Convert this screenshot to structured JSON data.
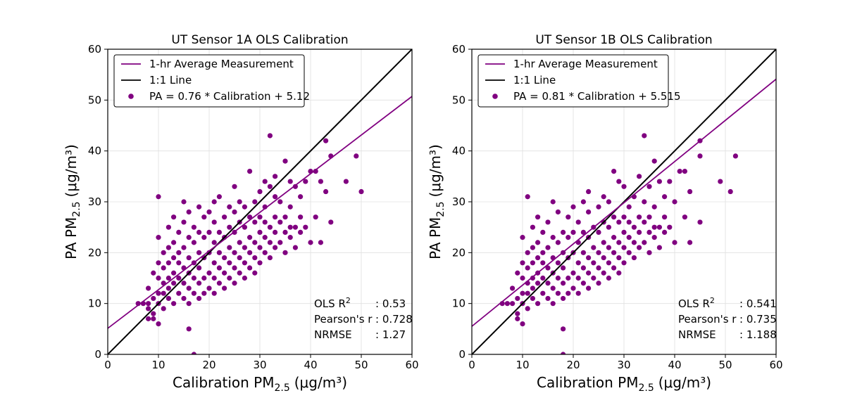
{
  "colors": {
    "scatter": "#800080",
    "fit": "#800080",
    "identity": "#000000",
    "grid": "#e0e0e0"
  },
  "chart_data": [
    {
      "type": "scatter",
      "title": "UT Sensor 1A OLS Calibration",
      "xlabel_main": "Calibration PM",
      "xlabel_sub": "2.5",
      "xlabel_unit": "(μg/m³)",
      "ylabel_main": "PA PM",
      "ylabel_sub": "2.5",
      "ylabel_unit": "(μg/m³)",
      "xlim": [
        0,
        60
      ],
      "ylim": [
        0,
        60
      ],
      "xticks": [
        "0",
        "10",
        "20",
        "30",
        "40",
        "50",
        "60"
      ],
      "yticks": [
        "0",
        "10",
        "20",
        "30",
        "40",
        "50",
        "60"
      ],
      "grid": true,
      "legend_position": "upper-left",
      "legend": [
        "1-hr Average Measurement",
        "1:1 Line",
        "PA = 0.76 * Calibration + 5.12"
      ],
      "fit": {
        "slope": 0.76,
        "intercept": 5.12
      },
      "stats": [
        {
          "label": "OLS R",
          "sup": "2",
          "value": ": 0.53"
        },
        {
          "label": "Pearson's r",
          "sup": "",
          "value": ": 0.728"
        },
        {
          "label": "NRMSE",
          "sup": "",
          "value": ": 1.27"
        }
      ],
      "points": [
        [
          6,
          10
        ],
        [
          7,
          10
        ],
        [
          8,
          10
        ],
        [
          8,
          13
        ],
        [
          8,
          9
        ],
        [
          8,
          7
        ],
        [
          9,
          7
        ],
        [
          9,
          16
        ],
        [
          9,
          11
        ],
        [
          9,
          8
        ],
        [
          10,
          6
        ],
        [
          10,
          10
        ],
        [
          10,
          12
        ],
        [
          10,
          15
        ],
        [
          10,
          18
        ],
        [
          10,
          23
        ],
        [
          10,
          31
        ],
        [
          11,
          9
        ],
        [
          11,
          12
        ],
        [
          11,
          14
        ],
        [
          11,
          17
        ],
        [
          11,
          20
        ],
        [
          12,
          11
        ],
        [
          12,
          13
        ],
        [
          12,
          15
        ],
        [
          12,
          18
        ],
        [
          12,
          21
        ],
        [
          12,
          25
        ],
        [
          13,
          10
        ],
        [
          13,
          14
        ],
        [
          13,
          16
        ],
        [
          13,
          19
        ],
        [
          13,
          22
        ],
        [
          13,
          27
        ],
        [
          14,
          12
        ],
        [
          14,
          15
        ],
        [
          14,
          18
        ],
        [
          14,
          20
        ],
        [
          14,
          24
        ],
        [
          15,
          11
        ],
        [
          15,
          14
        ],
        [
          15,
          17
        ],
        [
          15,
          21
        ],
        [
          15,
          26
        ],
        [
          15,
          30
        ],
        [
          16,
          10
        ],
        [
          16,
          13
        ],
        [
          16,
          16
        ],
        [
          16,
          19
        ],
        [
          16,
          23
        ],
        [
          16,
          28
        ],
        [
          16,
          5
        ],
        [
          17,
          0
        ],
        [
          17,
          12
        ],
        [
          17,
          15
        ],
        [
          17,
          18
        ],
        [
          17,
          22
        ],
        [
          17,
          25
        ],
        [
          18,
          11
        ],
        [
          18,
          14
        ],
        [
          18,
          17
        ],
        [
          18,
          20
        ],
        [
          18,
          24
        ],
        [
          18,
          29
        ],
        [
          19,
          12
        ],
        [
          19,
          15
        ],
        [
          19,
          19
        ],
        [
          19,
          23
        ],
        [
          19,
          27
        ],
        [
          20,
          13
        ],
        [
          20,
          16
        ],
        [
          20,
          20
        ],
        [
          20,
          24
        ],
        [
          20,
          28
        ],
        [
          21,
          12
        ],
        [
          21,
          15
        ],
        [
          21,
          18
        ],
        [
          21,
          22
        ],
        [
          21,
          26
        ],
        [
          21,
          30
        ],
        [
          22,
          14
        ],
        [
          22,
          17
        ],
        [
          22,
          20
        ],
        [
          22,
          24
        ],
        [
          22,
          31
        ],
        [
          23,
          13
        ],
        [
          23,
          16
        ],
        [
          23,
          19
        ],
        [
          23,
          23
        ],
        [
          23,
          27
        ],
        [
          24,
          15
        ],
        [
          24,
          18
        ],
        [
          24,
          21
        ],
        [
          24,
          25
        ],
        [
          24,
          29
        ],
        [
          25,
          14
        ],
        [
          25,
          17
        ],
        [
          25,
          20
        ],
        [
          25,
          24
        ],
        [
          25,
          28
        ],
        [
          25,
          33
        ],
        [
          26,
          16
        ],
        [
          26,
          19
        ],
        [
          26,
          22
        ],
        [
          26,
          26
        ],
        [
          26,
          30
        ],
        [
          27,
          15
        ],
        [
          27,
          18
        ],
        [
          27,
          21
        ],
        [
          27,
          25
        ],
        [
          27,
          29
        ],
        [
          28,
          17
        ],
        [
          28,
          20
        ],
        [
          28,
          23
        ],
        [
          28,
          27
        ],
        [
          28,
          36
        ],
        [
          29,
          16
        ],
        [
          29,
          19
        ],
        [
          29,
          22
        ],
        [
          29,
          26
        ],
        [
          29,
          30
        ],
        [
          30,
          18
        ],
        [
          30,
          21
        ],
        [
          30,
          24
        ],
        [
          30,
          27
        ],
        [
          30,
          32
        ],
        [
          31,
          20
        ],
        [
          31,
          23
        ],
        [
          31,
          26
        ],
        [
          31,
          29
        ],
        [
          31,
          34
        ],
        [
          32,
          19
        ],
        [
          32,
          22
        ],
        [
          32,
          25
        ],
        [
          32,
          33
        ],
        [
          32,
          43
        ],
        [
          33,
          21
        ],
        [
          33,
          24
        ],
        [
          33,
          27
        ],
        [
          33,
          31
        ],
        [
          33,
          35
        ],
        [
          34,
          22
        ],
        [
          34,
          26
        ],
        [
          34,
          30
        ],
        [
          35,
          20
        ],
        [
          35,
          24
        ],
        [
          35,
          27
        ],
        [
          35,
          38
        ],
        [
          36,
          23
        ],
        [
          36,
          25
        ],
        [
          36,
          29
        ],
        [
          36,
          34
        ],
        [
          37,
          21
        ],
        [
          37,
          25
        ],
        [
          37,
          33
        ],
        [
          38,
          24
        ],
        [
          38,
          27
        ],
        [
          38,
          31
        ],
        [
          39,
          25
        ],
        [
          39,
          34
        ],
        [
          40,
          22
        ],
        [
          40,
          36
        ],
        [
          41,
          27
        ],
        [
          41,
          36
        ],
        [
          42,
          22
        ],
        [
          42,
          34
        ],
        [
          43,
          32
        ],
        [
          43,
          42
        ],
        [
          44,
          26
        ],
        [
          44,
          39
        ],
        [
          47,
          34
        ],
        [
          49,
          39
        ],
        [
          50,
          32
        ]
      ]
    },
    {
      "type": "scatter",
      "title": "UT Sensor 1B OLS Calibration",
      "xlabel_main": "Calibration PM",
      "xlabel_sub": "2.5",
      "xlabel_unit": "(μg/m³)",
      "ylabel_main": "PA PM",
      "ylabel_sub": "2.5",
      "ylabel_unit": "(μg/m³)",
      "xlim": [
        0,
        60
      ],
      "ylim": [
        0,
        60
      ],
      "xticks": [
        "0",
        "10",
        "20",
        "30",
        "40",
        "50",
        "60"
      ],
      "yticks": [
        "0",
        "10",
        "20",
        "30",
        "40",
        "50",
        "60"
      ],
      "grid": true,
      "legend_position": "upper-left",
      "legend": [
        "1-hr Average Measurement",
        "1:1 Line",
        "PA = 0.81 * Calibration + 5.515"
      ],
      "fit": {
        "slope": 0.81,
        "intercept": 5.515
      },
      "stats": [
        {
          "label": "OLS R",
          "sup": "2",
          "value": ": 0.541"
        },
        {
          "label": "Pearson's r",
          "sup": "",
          "value": ": 0.735"
        },
        {
          "label": "NRMSE",
          "sup": "",
          "value": ": 1.188"
        }
      ],
      "points": [
        [
          6,
          10
        ],
        [
          7,
          10
        ],
        [
          8,
          10
        ],
        [
          8,
          13
        ],
        [
          9,
          8
        ],
        [
          9,
          7
        ],
        [
          9,
          16
        ],
        [
          9,
          11
        ],
        [
          10,
          6
        ],
        [
          10,
          10
        ],
        [
          10,
          12
        ],
        [
          10,
          15
        ],
        [
          10,
          18
        ],
        [
          10,
          23
        ],
        [
          11,
          31
        ],
        [
          11,
          9
        ],
        [
          11,
          12
        ],
        [
          11,
          14
        ],
        [
          11,
          17
        ],
        [
          11,
          20
        ],
        [
          12,
          11
        ],
        [
          12,
          13
        ],
        [
          12,
          15
        ],
        [
          12,
          18
        ],
        [
          12,
          21
        ],
        [
          12,
          25
        ],
        [
          13,
          10
        ],
        [
          13,
          14
        ],
        [
          13,
          16
        ],
        [
          13,
          19
        ],
        [
          13,
          22
        ],
        [
          13,
          27
        ],
        [
          14,
          12
        ],
        [
          14,
          15
        ],
        [
          14,
          18
        ],
        [
          14,
          20
        ],
        [
          14,
          24
        ],
        [
          15,
          11
        ],
        [
          15,
          14
        ],
        [
          15,
          17
        ],
        [
          15,
          21
        ],
        [
          15,
          26
        ],
        [
          16,
          10
        ],
        [
          16,
          13
        ],
        [
          16,
          16
        ],
        [
          16,
          19
        ],
        [
          16,
          23
        ],
        [
          16,
          30
        ],
        [
          17,
          12
        ],
        [
          17,
          15
        ],
        [
          17,
          18
        ],
        [
          17,
          22
        ],
        [
          17,
          28
        ],
        [
          18,
          0
        ],
        [
          18,
          5
        ],
        [
          18,
          11
        ],
        [
          18,
          14
        ],
        [
          18,
          17
        ],
        [
          18,
          20
        ],
        [
          18,
          24
        ],
        [
          19,
          12
        ],
        [
          19,
          15
        ],
        [
          19,
          19
        ],
        [
          19,
          23
        ],
        [
          19,
          27
        ],
        [
          20,
          13
        ],
        [
          20,
          16
        ],
        [
          20,
          20
        ],
        [
          20,
          24
        ],
        [
          20,
          29
        ],
        [
          21,
          12
        ],
        [
          21,
          15
        ],
        [
          21,
          18
        ],
        [
          21,
          22
        ],
        [
          21,
          26
        ],
        [
          22,
          14
        ],
        [
          22,
          17
        ],
        [
          22,
          20
        ],
        [
          22,
          24
        ],
        [
          22,
          30
        ],
        [
          23,
          13
        ],
        [
          23,
          16
        ],
        [
          23,
          19
        ],
        [
          23,
          23
        ],
        [
          23,
          28
        ],
        [
          23,
          32
        ],
        [
          24,
          15
        ],
        [
          24,
          18
        ],
        [
          24,
          21
        ],
        [
          24,
          25
        ],
        [
          25,
          14
        ],
        [
          25,
          17
        ],
        [
          25,
          20
        ],
        [
          25,
          24
        ],
        [
          25,
          29
        ],
        [
          26,
          16
        ],
        [
          26,
          19
        ],
        [
          26,
          22
        ],
        [
          26,
          26
        ],
        [
          26,
          31
        ],
        [
          27,
          15
        ],
        [
          27,
          18
        ],
        [
          27,
          21
        ],
        [
          27,
          25
        ],
        [
          27,
          30
        ],
        [
          28,
          17
        ],
        [
          28,
          20
        ],
        [
          28,
          23
        ],
        [
          28,
          27
        ],
        [
          28,
          36
        ],
        [
          29,
          16
        ],
        [
          29,
          19
        ],
        [
          29,
          22
        ],
        [
          29,
          26
        ],
        [
          29,
          34
        ],
        [
          30,
          18
        ],
        [
          30,
          21
        ],
        [
          30,
          24
        ],
        [
          30,
          27
        ],
        [
          30,
          33
        ],
        [
          31,
          20
        ],
        [
          31,
          23
        ],
        [
          31,
          26
        ],
        [
          31,
          29
        ],
        [
          32,
          19
        ],
        [
          32,
          22
        ],
        [
          32,
          25
        ],
        [
          32,
          31
        ],
        [
          33,
          21
        ],
        [
          33,
          24
        ],
        [
          33,
          27
        ],
        [
          33,
          35
        ],
        [
          34,
          22
        ],
        [
          34,
          26
        ],
        [
          34,
          30
        ],
        [
          34,
          43
        ],
        [
          35,
          20
        ],
        [
          35,
          24
        ],
        [
          35,
          27
        ],
        [
          35,
          33
        ],
        [
          36,
          23
        ],
        [
          36,
          25
        ],
        [
          36,
          29
        ],
        [
          36,
          38
        ],
        [
          37,
          21
        ],
        [
          37,
          25
        ],
        [
          37,
          34
        ],
        [
          38,
          24
        ],
        [
          38,
          27
        ],
        [
          38,
          31
        ],
        [
          39,
          25
        ],
        [
          39,
          34
        ],
        [
          40,
          22
        ],
        [
          40,
          30
        ],
        [
          41,
          36
        ],
        [
          42,
          27
        ],
        [
          42,
          36
        ],
        [
          43,
          22
        ],
        [
          43,
          32
        ],
        [
          45,
          26
        ],
        [
          45,
          39
        ],
        [
          45,
          42
        ],
        [
          49,
          34
        ],
        [
          51,
          32
        ],
        [
          52,
          39
        ]
      ]
    }
  ]
}
